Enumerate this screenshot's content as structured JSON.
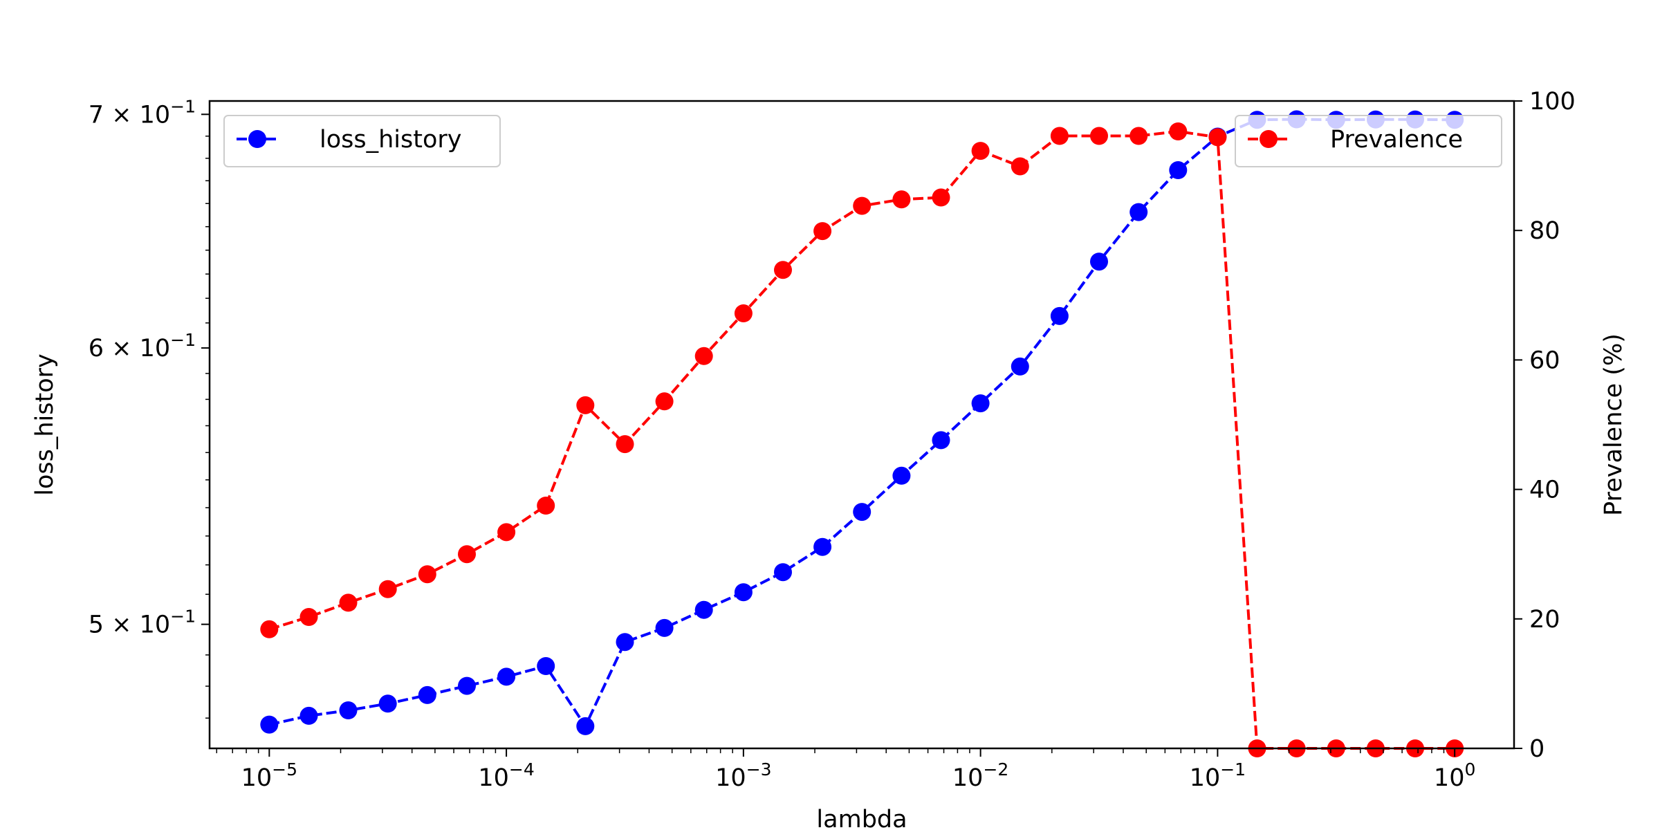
{
  "chart_data": {
    "type": "line",
    "x_label": "lambda",
    "x_scale": "log",
    "x_lim": [
      5.6e-06,
      1.78
    ],
    "x_ticks": [
      {
        "value": 1e-05,
        "mant": "10",
        "exp": "−5"
      },
      {
        "value": 0.0001,
        "mant": "10",
        "exp": "−4"
      },
      {
        "value": 0.001,
        "mant": "10",
        "exp": "−3"
      },
      {
        "value": 0.01,
        "mant": "10",
        "exp": "−2"
      },
      {
        "value": 0.1,
        "mant": "10",
        "exp": "−1"
      },
      {
        "value": 1,
        "mant": "10",
        "exp": "0"
      }
    ],
    "left_axis": {
      "label": "loss_history",
      "scale": "log",
      "lim": [
        0.4607,
        0.7062
      ],
      "ticks": [
        {
          "value": 0.5,
          "mant": "5 × 10",
          "exp": "−1"
        },
        {
          "value": 0.6,
          "mant": "6 × 10",
          "exp": "−1"
        },
        {
          "value": 0.7,
          "mant": "7 × 10",
          "exp": "−1"
        }
      ]
    },
    "right_axis": {
      "label": "Prevalence (%)",
      "scale": "linear",
      "lim": [
        0,
        100
      ],
      "ticks": [
        0,
        20,
        40,
        60,
        80,
        100
      ]
    },
    "x": [
      1e-05,
      1.468e-05,
      2.154e-05,
      3.162e-05,
      4.642e-05,
      6.813e-05,
      0.0001,
      0.0001468,
      0.0002154,
      0.0003162,
      0.0004642,
      0.0006813,
      0.001,
      0.001468,
      0.002154,
      0.003162,
      0.004642,
      0.006813,
      0.01,
      0.01468,
      0.02154,
      0.03162,
      0.04642,
      0.06813,
      0.1,
      0.1468,
      0.2154,
      0.3162,
      0.4642,
      0.6813,
      1.0
    ],
    "series": [
      {
        "name": "loss_history",
        "axis": "left",
        "color": "#0000ff",
        "style": "dashed-circle",
        "values": [
          0.468,
          0.4707,
          0.4724,
          0.4745,
          0.4772,
          0.4801,
          0.483,
          0.4864,
          0.4675,
          0.4942,
          0.4988,
          0.5048,
          0.5107,
          0.5175,
          0.5262,
          0.5385,
          0.5515,
          0.5646,
          0.5785,
          0.5927,
          0.6128,
          0.6352,
          0.6563,
          0.6747,
          0.6898,
          0.6975,
          0.6977,
          0.6975,
          0.6976,
          0.6976,
          0.6975
        ]
      },
      {
        "name": "Prevalence",
        "axis": "right",
        "color": "#ff0000",
        "style": "dashed-circle",
        "values": [
          18.4,
          20.3,
          22.5,
          24.6,
          26.9,
          30.0,
          33.4,
          37.5,
          53.0,
          47.0,
          53.6,
          60.6,
          67.2,
          73.9,
          79.9,
          83.8,
          84.8,
          85.1,
          92.3,
          89.9,
          94.6,
          94.6,
          94.6,
          95.3,
          94.4,
          0.0,
          0.0,
          0.0,
          0.0,
          0.0,
          0.0
        ]
      }
    ],
    "legends": [
      {
        "position": "upper left",
        "series": "loss_history"
      },
      {
        "position": "upper right",
        "series": "Prevalence"
      }
    ]
  }
}
